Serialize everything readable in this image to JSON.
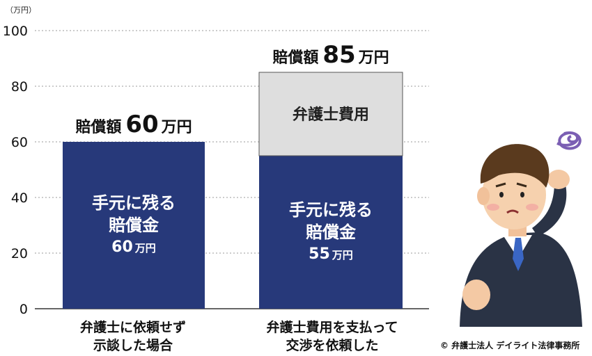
{
  "chart_data": {
    "type": "bar",
    "unit_label": "（万円）",
    "ylim": [
      0,
      100
    ],
    "yticks": [
      0,
      20,
      40,
      60,
      80,
      100
    ],
    "grid": true,
    "categories": [
      "弁護士に依頼せず\n示談した場合",
      "弁護士費用を支払って\n交渉を依頼した"
    ],
    "series": [
      {
        "key": "kept",
        "values": [
          60,
          55
        ],
        "color": "#27397a",
        "segment_labels": [
          {
            "line1": "手元に残る",
            "line2": "賠償金",
            "value": "60",
            "unit": "万円"
          },
          {
            "line1": "手元に残る",
            "line2": "賠償金",
            "value": "55",
            "unit": "万円"
          }
        ]
      },
      {
        "key": "fee",
        "values": [
          0,
          30
        ],
        "color": "#dedede",
        "segment_labels": [
          null,
          {
            "line1": "弁護士費用"
          }
        ]
      }
    ],
    "totals": [
      {
        "prefix": "賠償額",
        "value": "60",
        "unit": "万円"
      },
      {
        "prefix": "賠償額",
        "value": "85",
        "unit": "万円"
      }
    ]
  },
  "credit": "© 弁護士法人 デイライト法律事務所",
  "illustration": {
    "icon": "confused-businessman-icon"
  }
}
